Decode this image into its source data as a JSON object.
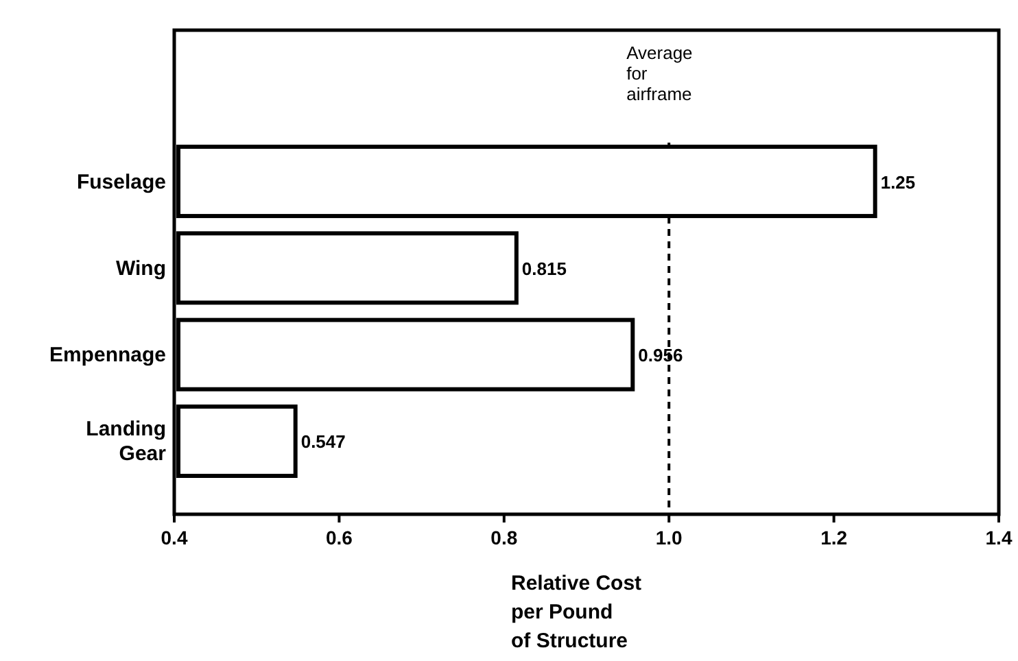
{
  "chart_data": {
    "type": "bar",
    "orientation": "horizontal",
    "categories": [
      "Fuselage",
      "Wing",
      "Empennage",
      "Landing Gear"
    ],
    "values": [
      1.25,
      0.815,
      0.956,
      0.547
    ],
    "color": "#ffffff",
    "data_labels": true,
    "xlim": [
      0.4,
      1.4
    ],
    "xticks": [
      0.4,
      0.6,
      0.8,
      {
        "value": 1,
        "label": "1.0"
      },
      1.2,
      1.4
    ],
    "xlabel": "Relative Cost\nper Pound\nof Structure",
    "grid": false,
    "ref_lines": [
      {
        "axis": "x",
        "value": 1,
        "label": "Average for airframe",
        "line_style": "dashed",
        "color": "#000000"
      }
    ]
  }
}
